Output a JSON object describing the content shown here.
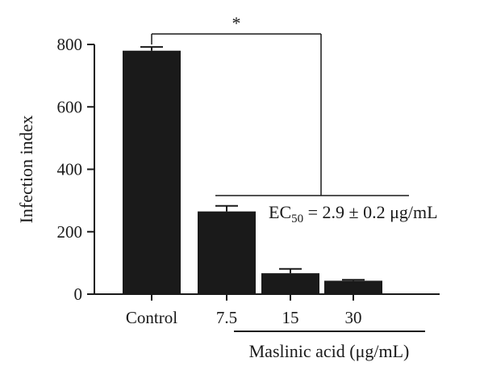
{
  "chart_data": {
    "type": "bar",
    "categories": [
      "Control",
      "7.5",
      "15",
      "30"
    ],
    "values": [
      780,
      265,
      67,
      43
    ],
    "errors": [
      12,
      18,
      14,
      3
    ],
    "ylabel": "Infection index",
    "xgroup_label": "Maslinic acid (μg/mL)",
    "ylim": [
      0,
      800
    ],
    "yticks": [
      0,
      200,
      400,
      600,
      800
    ],
    "significance_marker": "*",
    "ec50": {
      "prefix": "EC",
      "subscript": "50",
      "suffix": " = 2.9 ± 0.2 μg/mL"
    },
    "grid": false,
    "legend": "none",
    "bar_color": "#1a1a1a"
  }
}
